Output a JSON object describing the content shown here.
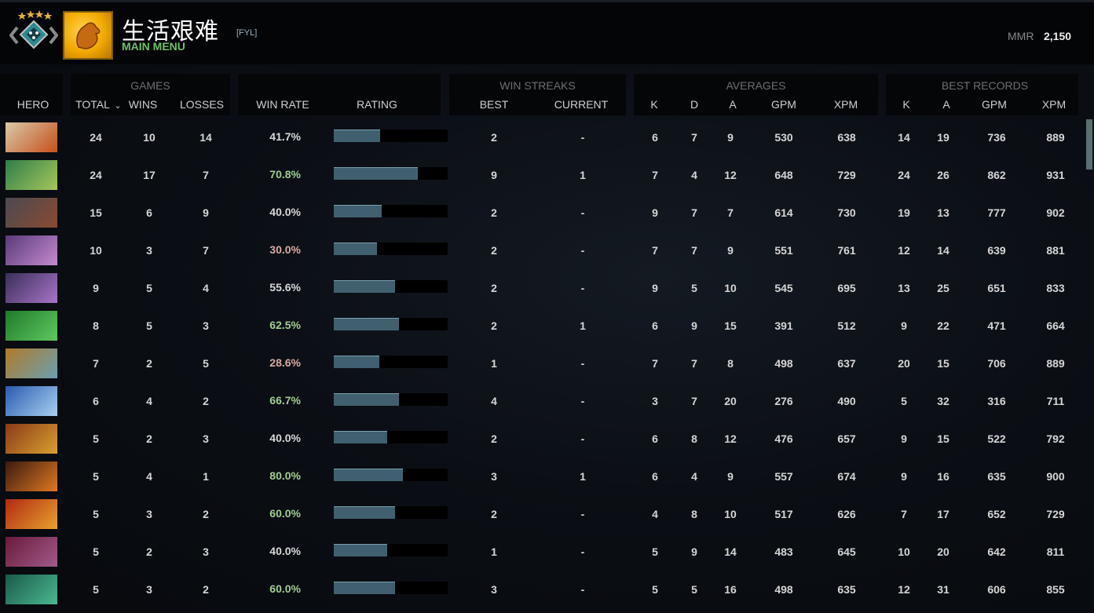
{
  "header": {
    "player_name": "生活艰难",
    "player_tag": "[FYL]",
    "main_menu_label": "MAIN MENU",
    "mmr_label": "MMR",
    "mmr_value": "2,150",
    "rank_stars": 4,
    "rank_badge_icon": "rank-medal-icon",
    "avatar_icon": "golden-glove-avatar"
  },
  "groups": {
    "games": "GAMES",
    "win_streaks": "WIN STREAKS",
    "averages": "AVERAGES",
    "best_records": "BEST RECORDS"
  },
  "columns": {
    "hero": "HERO",
    "total": "TOTAL",
    "wins": "WINS",
    "losses": "LOSSES",
    "win_rate": "WIN RATE",
    "rating": "RATING",
    "best": "BEST",
    "current": "CURRENT",
    "avg_k": "K",
    "avg_d": "D",
    "avg_a": "A",
    "avg_gpm": "GPM",
    "avg_xpm": "XPM",
    "best_k": "K",
    "best_a": "A",
    "best_gpm": "GPM",
    "best_xpm": "XPM"
  },
  "sort": {
    "column": "total",
    "direction": "desc",
    "icon": "chevron-down-icon"
  },
  "colors": {
    "win_rate_high": "#9fcf92",
    "win_rate_mid": "#d8d8d8",
    "win_rate_low": "#d9aca4",
    "rating_bar": "#41606f",
    "accent_green": "#6fbf6a"
  },
  "rows": [
    {
      "hero_colors": [
        "#d8c9a8",
        "#c6501c"
      ],
      "total": "24",
      "wins": "10",
      "losses": "14",
      "win_rate": "41.7%",
      "rating_pct": 41,
      "wr_class": "mid",
      "best_streak": "2",
      "current_streak": "-",
      "avg_k": "6",
      "avg_d": "7",
      "avg_a": "9",
      "avg_gpm": "530",
      "avg_xpm": "638",
      "best_k": "14",
      "best_a": "19",
      "best_gpm": "736",
      "best_xpm": "889"
    },
    {
      "hero_colors": [
        "#2f7d4a",
        "#a5c75a"
      ],
      "total": "24",
      "wins": "17",
      "losses": "7",
      "win_rate": "70.8%",
      "rating_pct": 74,
      "wr_class": "high",
      "best_streak": "9",
      "current_streak": "1",
      "avg_k": "7",
      "avg_d": "4",
      "avg_a": "12",
      "avg_gpm": "648",
      "avg_xpm": "729",
      "best_k": "24",
      "best_a": "26",
      "best_gpm": "862",
      "best_xpm": "931"
    },
    {
      "hero_colors": [
        "#4a4a52",
        "#8a4a30"
      ],
      "total": "15",
      "wins": "6",
      "losses": "9",
      "win_rate": "40.0%",
      "rating_pct": 42,
      "wr_class": "mid",
      "best_streak": "2",
      "current_streak": "-",
      "avg_k": "9",
      "avg_d": "7",
      "avg_a": "7",
      "avg_gpm": "614",
      "avg_xpm": "730",
      "best_k": "19",
      "best_a": "13",
      "best_gpm": "777",
      "best_xpm": "902"
    },
    {
      "hero_colors": [
        "#5a3a78",
        "#c48ad0"
      ],
      "total": "10",
      "wins": "3",
      "losses": "7",
      "win_rate": "30.0%",
      "rating_pct": 38,
      "wr_class": "low",
      "best_streak": "2",
      "current_streak": "-",
      "avg_k": "7",
      "avg_d": "7",
      "avg_a": "9",
      "avg_gpm": "551",
      "avg_xpm": "761",
      "best_k": "12",
      "best_a": "14",
      "best_gpm": "639",
      "best_xpm": "881"
    },
    {
      "hero_colors": [
        "#3a2f5a",
        "#a874c8"
      ],
      "total": "9",
      "wins": "5",
      "losses": "4",
      "win_rate": "55.6%",
      "rating_pct": 54,
      "wr_class": "mid",
      "best_streak": "2",
      "current_streak": "-",
      "avg_k": "9",
      "avg_d": "5",
      "avg_a": "10",
      "avg_gpm": "545",
      "avg_xpm": "695",
      "best_k": "13",
      "best_a": "25",
      "best_gpm": "651",
      "best_xpm": "833"
    },
    {
      "hero_colors": [
        "#1f7a2a",
        "#5fc860"
      ],
      "total": "8",
      "wins": "5",
      "losses": "3",
      "win_rate": "62.5%",
      "rating_pct": 57,
      "wr_class": "high",
      "best_streak": "2",
      "current_streak": "1",
      "avg_k": "6",
      "avg_d": "9",
      "avg_a": "15",
      "avg_gpm": "391",
      "avg_xpm": "512",
      "best_k": "9",
      "best_a": "22",
      "best_gpm": "471",
      "best_xpm": "664"
    },
    {
      "hero_colors": [
        "#b07a2a",
        "#6aa0b0"
      ],
      "total": "7",
      "wins": "2",
      "losses": "5",
      "win_rate": "28.6%",
      "rating_pct": 40,
      "wr_class": "low",
      "best_streak": "1",
      "current_streak": "-",
      "avg_k": "7",
      "avg_d": "7",
      "avg_a": "8",
      "avg_gpm": "498",
      "avg_xpm": "637",
      "best_k": "20",
      "best_a": "15",
      "best_gpm": "706",
      "best_xpm": "889"
    },
    {
      "hero_colors": [
        "#2a5ab0",
        "#a8d0f0"
      ],
      "total": "6",
      "wins": "4",
      "losses": "2",
      "win_rate": "66.7%",
      "rating_pct": 57,
      "wr_class": "high",
      "best_streak": "4",
      "current_streak": "-",
      "avg_k": "3",
      "avg_d": "7",
      "avg_a": "20",
      "avg_gpm": "276",
      "avg_xpm": "490",
      "best_k": "5",
      "best_a": "32",
      "best_gpm": "316",
      "best_xpm": "711"
    },
    {
      "hero_colors": [
        "#8a3a18",
        "#d8a030"
      ],
      "total": "5",
      "wins": "2",
      "losses": "3",
      "win_rate": "40.0%",
      "rating_pct": 47,
      "wr_class": "mid",
      "best_streak": "2",
      "current_streak": "-",
      "avg_k": "6",
      "avg_d": "8",
      "avg_a": "12",
      "avg_gpm": "476",
      "avg_xpm": "657",
      "best_k": "9",
      "best_a": "15",
      "best_gpm": "522",
      "best_xpm": "792"
    },
    {
      "hero_colors": [
        "#3a1a10",
        "#e07820"
      ],
      "total": "5",
      "wins": "4",
      "losses": "1",
      "win_rate": "80.0%",
      "rating_pct": 61,
      "wr_class": "high",
      "best_streak": "3",
      "current_streak": "1",
      "avg_k": "6",
      "avg_d": "4",
      "avg_a": "9",
      "avg_gpm": "557",
      "avg_xpm": "674",
      "best_k": "9",
      "best_a": "16",
      "best_gpm": "635",
      "best_xpm": "900"
    },
    {
      "hero_colors": [
        "#b02a10",
        "#e8a030"
      ],
      "total": "5",
      "wins": "3",
      "losses": "2",
      "win_rate": "60.0%",
      "rating_pct": 54,
      "wr_class": "high",
      "best_streak": "2",
      "current_streak": "-",
      "avg_k": "4",
      "avg_d": "8",
      "avg_a": "10",
      "avg_gpm": "517",
      "avg_xpm": "626",
      "best_k": "7",
      "best_a": "17",
      "best_gpm": "652",
      "best_xpm": "729"
    },
    {
      "hero_colors": [
        "#6a1a3a",
        "#a05a8a"
      ],
      "total": "5",
      "wins": "2",
      "losses": "3",
      "win_rate": "40.0%",
      "rating_pct": 47,
      "wr_class": "mid",
      "best_streak": "1",
      "current_streak": "-",
      "avg_k": "5",
      "avg_d": "9",
      "avg_a": "14",
      "avg_gpm": "483",
      "avg_xpm": "645",
      "best_k": "10",
      "best_a": "20",
      "best_gpm": "642",
      "best_xpm": "811"
    },
    {
      "hero_colors": [
        "#1a5a4a",
        "#4ab890"
      ],
      "total": "5",
      "wins": "3",
      "losses": "2",
      "win_rate": "60.0%",
      "rating_pct": 54,
      "wr_class": "high",
      "best_streak": "3",
      "current_streak": "-",
      "avg_k": "5",
      "avg_d": "5",
      "avg_a": "16",
      "avg_gpm": "498",
      "avg_xpm": "635",
      "best_k": "12",
      "best_a": "31",
      "best_gpm": "606",
      "best_xpm": "855"
    }
  ]
}
